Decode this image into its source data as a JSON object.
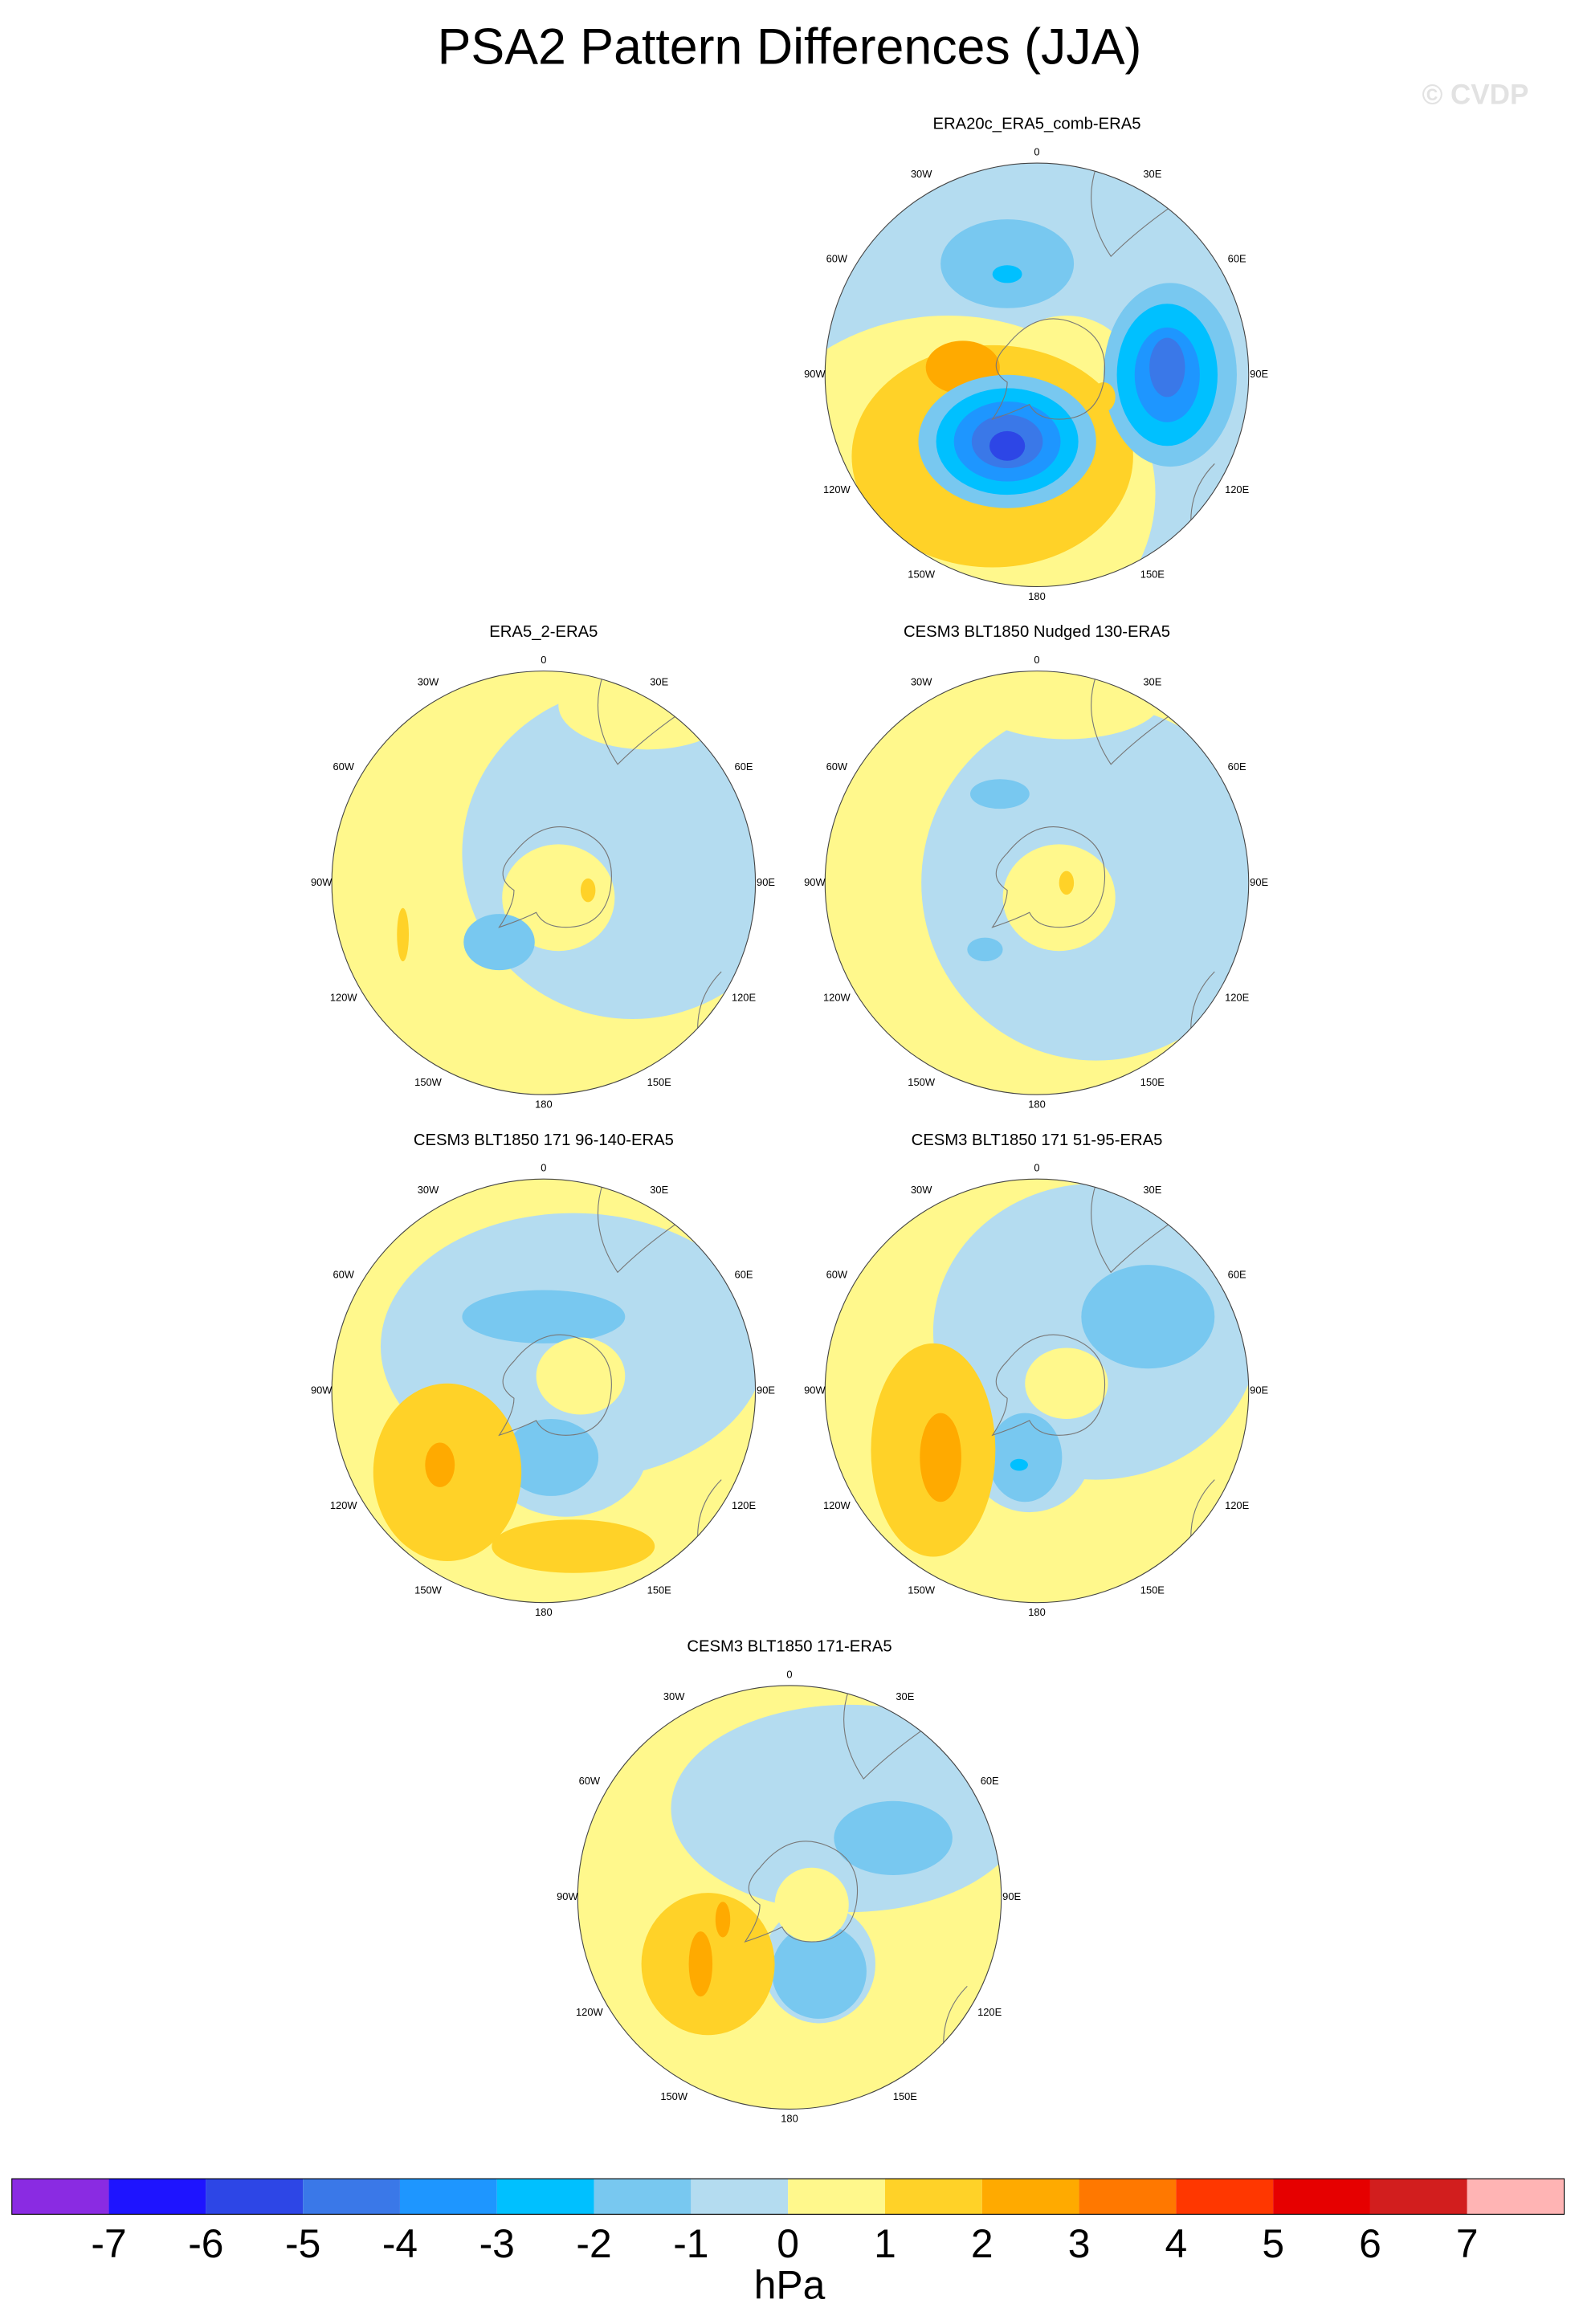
{
  "title": "PSA2 Pattern Differences (JJA)",
  "watermark": "© CVDP",
  "lon_labels": [
    "0",
    "30E",
    "60E",
    "90E",
    "120E",
    "150E",
    "180",
    "150W",
    "120W",
    "90W",
    "60W",
    "30W"
  ],
  "panels": [
    {
      "title": "ERA20c_ERA5_comb-ERA5"
    },
    {
      "title": "ERA5_2-ERA5"
    },
    {
      "title": "CESM3 BLT1850 Nudged 130-ERA5"
    },
    {
      "title": "CESM3 BLT1850 171 96-140-ERA5"
    },
    {
      "title": "CESM3 BLT1850 171 51-95-ERA5"
    },
    {
      "title": "CESM3 BLT1850 171-ERA5"
    }
  ],
  "colorbar": {
    "levels": [
      -7,
      -6,
      -5,
      -4,
      -3,
      -2,
      -1,
      0,
      1,
      2,
      3,
      4,
      5,
      6,
      7
    ],
    "colors": [
      "#8a2be2",
      "#1e14ff",
      "#2d46e6",
      "#3a78e8",
      "#1e96ff",
      "#00c0ff",
      "#78c8f0",
      "#b4dcf0",
      "#fff88c",
      "#ffd228",
      "#ffaa00",
      "#ff7800",
      "#ff3700",
      "#e60000",
      "#d21e1e",
      "#ffb4b4"
    ],
    "label": "hPa"
  }
}
